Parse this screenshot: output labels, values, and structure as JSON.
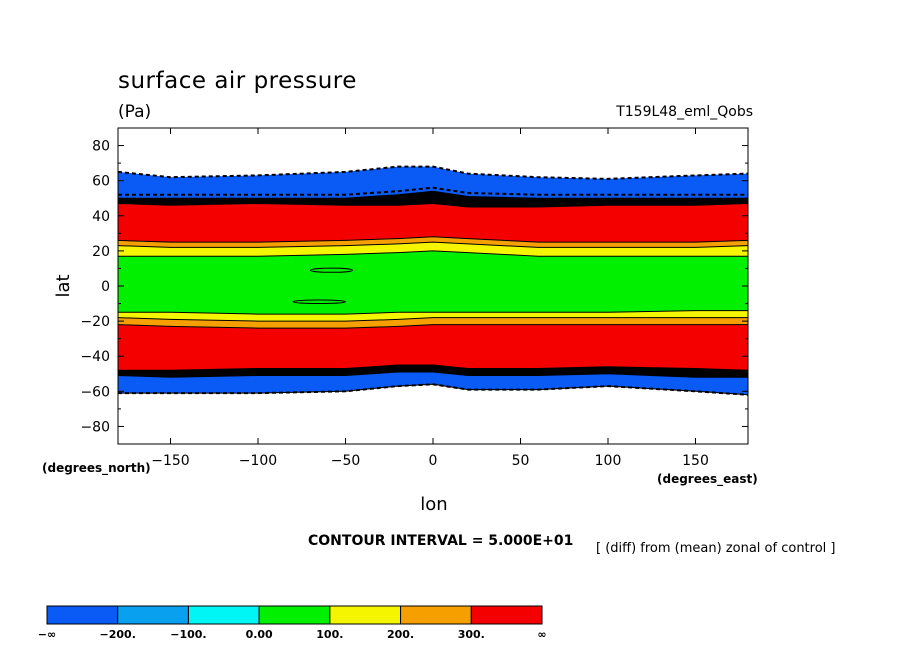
{
  "title": "surface air pressure",
  "units": "(Pa)",
  "run_label": "T159L48_eml_Qobs",
  "contour_interval": "CONTOUR INTERVAL = 5.000E+01",
  "note": "[ (diff) from (mean) zonal of control ]",
  "colors": {
    "neg_inf_to_m200": "#0a5af5",
    "m200_to_m100": "#0aa0f0",
    "m100_to_0": "#00f5f5",
    "0_to_100": "#00f000",
    "100_to_200": "#f5f500",
    "200_to_300": "#f5a000",
    "300_to_inf": "#f50000"
  },
  "chart_data": {
    "type": "contour",
    "title": "surface air pressure",
    "units": "(Pa)",
    "xlabel": "lon",
    "ylabel": "lat",
    "x_unit_label": "(degrees_east)",
    "y_unit_label": "(degrees_north)",
    "xlim": [
      -180,
      180
    ],
    "ylim": [
      -90,
      90
    ],
    "x_ticks": [
      -150,
      -100,
      -50,
      0,
      50,
      100,
      150
    ],
    "y_ticks": [
      80,
      60,
      40,
      20,
      0,
      -20,
      -40,
      -60,
      -80
    ],
    "legend": {
      "labels": [
        "-∞",
        "-200.",
        "-100.",
        "0.00",
        "100.",
        "200.",
        "300.",
        "∞"
      ],
      "colors": [
        "#0a5af5",
        "#0aa0f0",
        "#00f5f5",
        "#00f000",
        "#f5f500",
        "#f5a000",
        "#f50000"
      ]
    },
    "bands": [
      {
        "name": "north-blue",
        "color": "#0a5af5",
        "top": [
          [
            -180,
            65
          ],
          [
            -150,
            62
          ],
          [
            -100,
            63
          ],
          [
            -50,
            65
          ],
          [
            -20,
            68
          ],
          [
            0,
            68
          ],
          [
            20,
            64
          ],
          [
            60,
            62
          ],
          [
            100,
            61
          ],
          [
            150,
            63
          ],
          [
            180,
            64
          ]
        ],
        "bottom": [
          [
            -180,
            50
          ],
          [
            -150,
            50
          ],
          [
            -100,
            50
          ],
          [
            -50,
            50
          ],
          [
            -20,
            52
          ],
          [
            0,
            54
          ],
          [
            20,
            51
          ],
          [
            60,
            50
          ],
          [
            100,
            50
          ],
          [
            150,
            50
          ],
          [
            180,
            50
          ]
        ]
      },
      {
        "name": "north-black",
        "color": "#000000",
        "top": [
          [
            -180,
            50
          ],
          [
            -150,
            50
          ],
          [
            -100,
            50
          ],
          [
            -50,
            50
          ],
          [
            -20,
            52
          ],
          [
            0,
            54
          ],
          [
            20,
            51
          ],
          [
            60,
            50
          ],
          [
            100,
            50
          ],
          [
            150,
            50
          ],
          [
            180,
            50
          ]
        ],
        "bottom": [
          [
            -180,
            47
          ],
          [
            -150,
            46
          ],
          [
            -100,
            47
          ],
          [
            -50,
            46
          ],
          [
            -20,
            46
          ],
          [
            0,
            47
          ],
          [
            20,
            45
          ],
          [
            60,
            45
          ],
          [
            100,
            46
          ],
          [
            150,
            46
          ],
          [
            180,
            47
          ]
        ]
      },
      {
        "name": "north-red",
        "color": "#f50000",
        "top": [
          [
            -180,
            47
          ],
          [
            -150,
            46
          ],
          [
            -100,
            47
          ],
          [
            -50,
            46
          ],
          [
            -20,
            46
          ],
          [
            0,
            47
          ],
          [
            20,
            45
          ],
          [
            60,
            45
          ],
          [
            100,
            46
          ],
          [
            150,
            46
          ],
          [
            180,
            47
          ]
        ],
        "bottom": [
          [
            -180,
            26
          ],
          [
            -150,
            25
          ],
          [
            -100,
            25
          ],
          [
            -50,
            26
          ],
          [
            -20,
            27
          ],
          [
            0,
            28
          ],
          [
            20,
            27
          ],
          [
            60,
            25
          ],
          [
            100,
            25
          ],
          [
            150,
            25
          ],
          [
            180,
            26
          ]
        ]
      },
      {
        "name": "north-orange",
        "color": "#f5a000",
        "top": [
          [
            -180,
            26
          ],
          [
            -150,
            25
          ],
          [
            -100,
            25
          ],
          [
            -50,
            26
          ],
          [
            -20,
            27
          ],
          [
            0,
            28
          ],
          [
            20,
            27
          ],
          [
            60,
            25
          ],
          [
            100,
            25
          ],
          [
            150,
            25
          ],
          [
            180,
            26
          ]
        ],
        "bottom": [
          [
            -180,
            23
          ],
          [
            -150,
            22
          ],
          [
            -100,
            22
          ],
          [
            -50,
            23
          ],
          [
            -20,
            24
          ],
          [
            0,
            25
          ],
          [
            20,
            24
          ],
          [
            60,
            22
          ],
          [
            100,
            22
          ],
          [
            150,
            22
          ],
          [
            180,
            23
          ]
        ]
      },
      {
        "name": "north-yellow",
        "color": "#f5f500",
        "top": [
          [
            -180,
            23
          ],
          [
            -150,
            22
          ],
          [
            -100,
            22
          ],
          [
            -50,
            23
          ],
          [
            -20,
            24
          ],
          [
            0,
            25
          ],
          [
            20,
            24
          ],
          [
            60,
            22
          ],
          [
            100,
            22
          ],
          [
            150,
            22
          ],
          [
            180,
            23
          ]
        ],
        "bottom": [
          [
            -180,
            17
          ],
          [
            -150,
            17
          ],
          [
            -100,
            17
          ],
          [
            -50,
            18
          ],
          [
            -20,
            19
          ],
          [
            0,
            20
          ],
          [
            20,
            19
          ],
          [
            60,
            17
          ],
          [
            100,
            17
          ],
          [
            150,
            17
          ],
          [
            180,
            17
          ]
        ]
      },
      {
        "name": "equator-green",
        "color": "#00f000",
        "top": [
          [
            -180,
            17
          ],
          [
            -150,
            17
          ],
          [
            -100,
            17
          ],
          [
            -50,
            18
          ],
          [
            -20,
            19
          ],
          [
            0,
            20
          ],
          [
            20,
            19
          ],
          [
            60,
            17
          ],
          [
            100,
            17
          ],
          [
            150,
            17
          ],
          [
            180,
            17
          ]
        ],
        "bottom": [
          [
            -180,
            -15
          ],
          [
            -150,
            -15
          ],
          [
            -100,
            -16
          ],
          [
            -50,
            -16
          ],
          [
            -20,
            -15
          ],
          [
            0,
            -15
          ],
          [
            20,
            -15
          ],
          [
            60,
            -15
          ],
          [
            100,
            -15
          ],
          [
            150,
            -14
          ],
          [
            180,
            -14
          ]
        ]
      },
      {
        "name": "south-yellow",
        "color": "#f5f500",
        "top": [
          [
            -180,
            -15
          ],
          [
            -150,
            -15
          ],
          [
            -100,
            -16
          ],
          [
            -50,
            -16
          ],
          [
            -20,
            -15
          ],
          [
            0,
            -15
          ],
          [
            20,
            -15
          ],
          [
            60,
            -15
          ],
          [
            100,
            -15
          ],
          [
            150,
            -14
          ],
          [
            180,
            -14
          ]
        ],
        "bottom": [
          [
            -180,
            -18
          ],
          [
            -150,
            -19
          ],
          [
            -100,
            -20
          ],
          [
            -50,
            -20
          ],
          [
            -20,
            -19
          ],
          [
            0,
            -18
          ],
          [
            20,
            -18
          ],
          [
            60,
            -18
          ],
          [
            100,
            -18
          ],
          [
            150,
            -18
          ],
          [
            180,
            -18
          ]
        ]
      },
      {
        "name": "south-orange",
        "color": "#f5a000",
        "top": [
          [
            -180,
            -18
          ],
          [
            -150,
            -19
          ],
          [
            -100,
            -20
          ],
          [
            -50,
            -20
          ],
          [
            -20,
            -19
          ],
          [
            0,
            -18
          ],
          [
            20,
            -18
          ],
          [
            60,
            -18
          ],
          [
            100,
            -18
          ],
          [
            150,
            -18
          ],
          [
            180,
            -18
          ]
        ],
        "bottom": [
          [
            -180,
            -22
          ],
          [
            -150,
            -23
          ],
          [
            -100,
            -24
          ],
          [
            -50,
            -24
          ],
          [
            -20,
            -23
          ],
          [
            0,
            -22
          ],
          [
            20,
            -22
          ],
          [
            60,
            -22
          ],
          [
            100,
            -22
          ],
          [
            150,
            -22
          ],
          [
            180,
            -22
          ]
        ]
      },
      {
        "name": "south-red",
        "color": "#f50000",
        "top": [
          [
            -180,
            -22
          ],
          [
            -150,
            -23
          ],
          [
            -100,
            -24
          ],
          [
            -50,
            -24
          ],
          [
            -20,
            -23
          ],
          [
            0,
            -22
          ],
          [
            20,
            -22
          ],
          [
            60,
            -22
          ],
          [
            100,
            -22
          ],
          [
            150,
            -22
          ],
          [
            180,
            -22
          ]
        ],
        "bottom": [
          [
            -180,
            -48
          ],
          [
            -150,
            -48
          ],
          [
            -100,
            -47
          ],
          [
            -50,
            -47
          ],
          [
            -20,
            -45
          ],
          [
            0,
            -45
          ],
          [
            20,
            -47
          ],
          [
            60,
            -47
          ],
          [
            100,
            -46
          ],
          [
            150,
            -47
          ],
          [
            180,
            -48
          ]
        ]
      },
      {
        "name": "south-black",
        "color": "#000000",
        "top": [
          [
            -180,
            -48
          ],
          [
            -150,
            -48
          ],
          [
            -100,
            -47
          ],
          [
            -50,
            -47
          ],
          [
            -20,
            -45
          ],
          [
            0,
            -45
          ],
          [
            20,
            -47
          ],
          [
            60,
            -47
          ],
          [
            100,
            -46
          ],
          [
            150,
            -47
          ],
          [
            180,
            -48
          ]
        ],
        "bottom": [
          [
            -180,
            -51
          ],
          [
            -150,
            -52
          ],
          [
            -100,
            -51
          ],
          [
            -50,
            -51
          ],
          [
            -20,
            -49
          ],
          [
            0,
            -49
          ],
          [
            20,
            -51
          ],
          [
            60,
            -51
          ],
          [
            100,
            -50
          ],
          [
            150,
            -52
          ],
          [
            180,
            -52
          ]
        ]
      },
      {
        "name": "south-blue",
        "color": "#0a5af5",
        "top": [
          [
            -180,
            -51
          ],
          [
            -150,
            -52
          ],
          [
            -100,
            -51
          ],
          [
            -50,
            -51
          ],
          [
            -20,
            -49
          ],
          [
            0,
            -49
          ],
          [
            20,
            -51
          ],
          [
            60,
            -51
          ],
          [
            100,
            -50
          ],
          [
            150,
            -52
          ],
          [
            180,
            -52
          ]
        ],
        "bottom": [
          [
            -180,
            -61
          ],
          [
            -150,
            -61
          ],
          [
            -100,
            -61
          ],
          [
            -50,
            -60
          ],
          [
            -20,
            -57
          ],
          [
            0,
            -56
          ],
          [
            20,
            -59
          ],
          [
            60,
            -59
          ],
          [
            100,
            -57
          ],
          [
            150,
            -60
          ],
          [
            180,
            -62
          ]
        ]
      }
    ],
    "contour_lines": [
      {
        "name": "north-edge-dashed",
        "dashed": true,
        "points": [
          [
            -180,
            65
          ],
          [
            -150,
            62
          ],
          [
            -100,
            63
          ],
          [
            -50,
            65
          ],
          [
            -20,
            68
          ],
          [
            0,
            68
          ],
          [
            20,
            64
          ],
          [
            60,
            62
          ],
          [
            100,
            61
          ],
          [
            150,
            63
          ],
          [
            180,
            64
          ]
        ]
      },
      {
        "name": "north-blue-dotted",
        "dashed": true,
        "points": [
          [
            -180,
            52
          ],
          [
            -150,
            52
          ],
          [
            -100,
            52
          ],
          [
            -50,
            52
          ],
          [
            -20,
            54
          ],
          [
            0,
            56
          ],
          [
            20,
            53
          ],
          [
            60,
            52
          ],
          [
            100,
            52
          ],
          [
            150,
            52
          ],
          [
            180,
            52
          ]
        ]
      },
      {
        "name": "south-blue-dotted",
        "dashed": true,
        "points": [
          [
            -180,
            -50
          ],
          [
            -150,
            -50
          ],
          [
            -100,
            -50
          ],
          [
            -50,
            -50
          ],
          [
            -20,
            -48
          ],
          [
            0,
            -48
          ],
          [
            20,
            -50
          ],
          [
            60,
            -50
          ],
          [
            100,
            -49
          ],
          [
            150,
            -50
          ],
          [
            180,
            -50
          ]
        ]
      },
      {
        "name": "south-edge-dashed",
        "dashed": true,
        "points": [
          [
            -180,
            -61
          ],
          [
            -150,
            -61
          ],
          [
            -100,
            -61
          ],
          [
            -50,
            -60
          ],
          [
            -20,
            -57
          ],
          [
            0,
            -56
          ],
          [
            20,
            -59
          ],
          [
            60,
            -59
          ],
          [
            100,
            -57
          ],
          [
            150,
            -60
          ],
          [
            180,
            -62
          ]
        ]
      }
    ],
    "closed_contours": [
      {
        "name": "green-island-north",
        "cx": -58,
        "cy": 9,
        "rx": 12,
        "ry": 1.2
      },
      {
        "name": "green-island-south",
        "cx": -65,
        "cy": -9,
        "rx": 15,
        "ry": 1
      }
    ]
  }
}
